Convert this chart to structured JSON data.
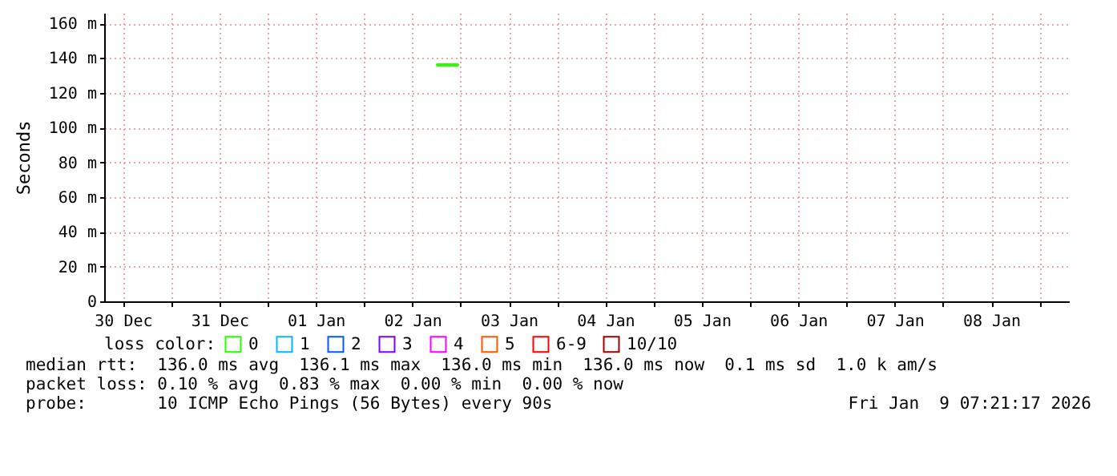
{
  "chart_data": {
    "type": "line",
    "ylabel": "Seconds",
    "legend_title": "loss color:",
    "legend": "bottom",
    "grid": true,
    "marker": "none",
    "line_style": "solid",
    "x": [
      "2026-01-02T18:15",
      "2026-01-02T23:15"
    ],
    "xlim": [
      "2025-12-30T07:20",
      "2026-01-09T07:20"
    ],
    "xticks": [
      {
        "value": "2025-12-30T12:00",
        "label": "30 Dec"
      },
      {
        "value": "2025-12-31T00:00",
        "label": null
      },
      {
        "value": "2025-12-31T12:00",
        "label": "31 Dec"
      },
      {
        "value": "2026-01-01T00:00",
        "label": null
      },
      {
        "value": "2026-01-01T12:00",
        "label": "01 Jan"
      },
      {
        "value": "2026-01-02T00:00",
        "label": null
      },
      {
        "value": "2026-01-02T12:00",
        "label": "02 Jan"
      },
      {
        "value": "2026-01-03T00:00",
        "label": null
      },
      {
        "value": "2026-01-03T12:00",
        "label": "03 Jan"
      },
      {
        "value": "2026-01-04T00:00",
        "label": null
      },
      {
        "value": "2026-01-04T12:00",
        "label": "04 Jan"
      },
      {
        "value": "2026-01-05T00:00",
        "label": null
      },
      {
        "value": "2026-01-05T12:00",
        "label": "05 Jan"
      },
      {
        "value": "2026-01-06T00:00",
        "label": null
      },
      {
        "value": "2026-01-06T12:00",
        "label": "06 Jan"
      },
      {
        "value": "2026-01-07T00:00",
        "label": null
      },
      {
        "value": "2026-01-07T12:00",
        "label": "07 Jan"
      },
      {
        "value": "2026-01-08T00:00",
        "label": null
      },
      {
        "value": "2026-01-08T12:00",
        "label": "08 Jan"
      },
      {
        "value": "2026-01-09T00:00",
        "label": null
      }
    ],
    "ylim": [
      0,
      166
    ],
    "yticks": [
      0,
      {
        "value": 20,
        "label": "20 m"
      },
      {
        "value": 40,
        "label": "40 m"
      },
      {
        "value": 60,
        "label": "60 m"
      },
      {
        "value": 80,
        "label": "80 m"
      },
      {
        "value": 100,
        "label": "100 m"
      },
      {
        "value": 120,
        "label": "120 m"
      },
      {
        "value": 140,
        "label": "140 m"
      },
      {
        "value": 160,
        "label": "160 m"
      }
    ],
    "series": [
      {
        "name": "0",
        "color": "#26ff00",
        "values": [
          136,
          136
        ]
      },
      {
        "name": "1",
        "color": "#00b8ff",
        "values": [
          null,
          null
        ]
      },
      {
        "name": "2",
        "color": "#0059ff",
        "values": [
          null,
          null
        ]
      },
      {
        "name": "3",
        "color": "#7e00ff",
        "values": [
          null,
          null
        ]
      },
      {
        "name": "4",
        "color": "#ff00ff",
        "values": [
          null,
          null
        ]
      },
      {
        "name": "5",
        "color": "#ff5500",
        "values": [
          null,
          null
        ]
      },
      {
        "name": "6-9",
        "color": "#ff0000",
        "values": [
          null,
          null
        ]
      },
      {
        "name": "10/10",
        "color": "#a10000",
        "values": [
          null,
          null
        ]
      }
    ],
    "annotations": [
      "median rtt:  136.0 ms avg  136.1 ms max  136.0 ms min  136.0 ms now  0.1 ms sd  1.0 k am/s",
      "packet loss: 0.10 % avg  0.83 % max  0.00 % min  0.00 % now",
      "probe:       10 ICMP Echo Pings (56 Bytes) every 90s",
      "Fri Jan  9 07:21:17 2026"
    ]
  }
}
